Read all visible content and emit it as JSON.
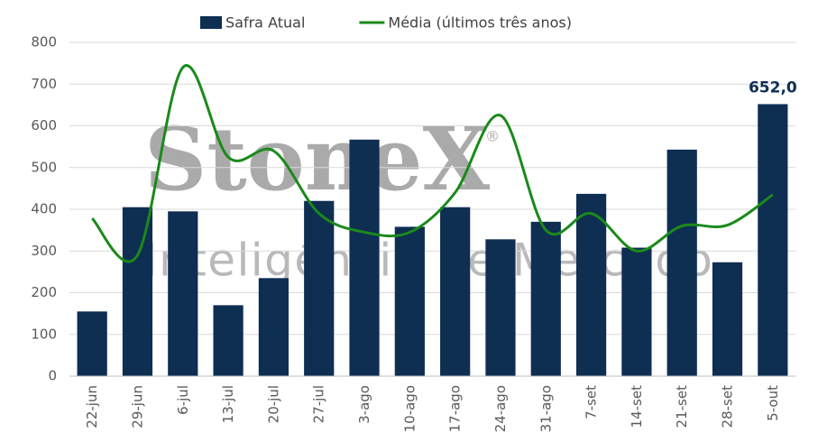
{
  "chart_data": {
    "type": "bar-line",
    "categories": [
      "22-jun",
      "29-jun",
      "6-jul",
      "13-jul",
      "20-jul",
      "27-jul",
      "3-ago",
      "10-ago",
      "17-ago",
      "24-ago",
      "31-ago",
      "7-set",
      "14-set",
      "21-set",
      "28-set",
      "5-out"
    ],
    "series": [
      {
        "name": "Safra Atual",
        "type": "bar",
        "color": "#0e2e52",
        "values": [
          155,
          405,
          395,
          170,
          235,
          420,
          567,
          358,
          405,
          328,
          370,
          437,
          308,
          543,
          273,
          652
        ],
        "value_labels": [
          null,
          null,
          null,
          null,
          null,
          null,
          null,
          null,
          null,
          null,
          null,
          null,
          null,
          null,
          null,
          "652,0"
        ]
      },
      {
        "name": "Média (últimos três anos)",
        "type": "line",
        "color": "#1a8a1a",
        "smooth": true,
        "values": [
          378,
          290,
          740,
          525,
          540,
          390,
          345,
          345,
          440,
          625,
          350,
          390,
          300,
          360,
          362,
          435
        ]
      }
    ],
    "ylim": [
      0,
      800
    ],
    "yticks": [
      0,
      100,
      200,
      300,
      400,
      500,
      600,
      700,
      800
    ],
    "grid": true,
    "legend": "top",
    "watermark": {
      "brand": "StoneX",
      "mark": "®",
      "tagline": "Inteligência de Mercado"
    }
  }
}
